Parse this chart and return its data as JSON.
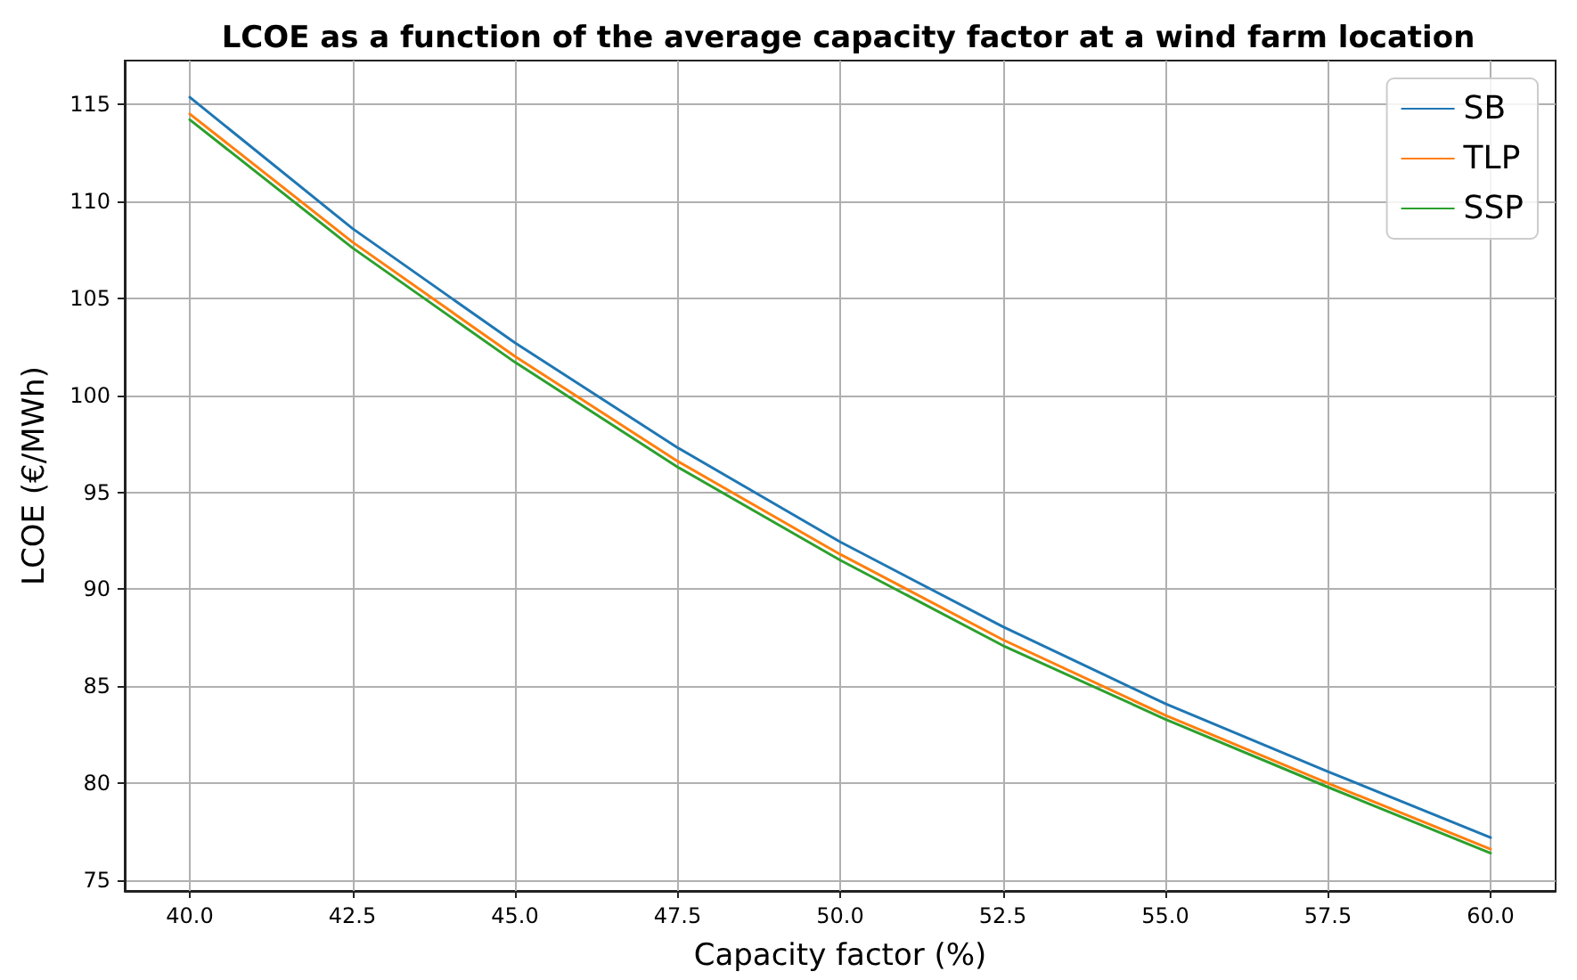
{
  "chart_data": {
    "type": "line",
    "title": "LCOE as a function of the average capacity factor at a wind farm location",
    "xlabel": "Capacity factor (%)",
    "ylabel": "LCOE (€/MWh)",
    "x": [
      40,
      42.5,
      45,
      47.5,
      50,
      52.5,
      55,
      57.5,
      60
    ],
    "series": [
      {
        "name": "SB",
        "color": "#1f77b4",
        "values": [
          115.36,
          108.6,
          102.7,
          97.3,
          92.44,
          88.07,
          84.1,
          80.6,
          77.2
        ]
      },
      {
        "name": "TLP",
        "color": "#ff7f0e",
        "values": [
          114.5,
          107.9,
          102.0,
          96.6,
          91.8,
          87.4,
          83.5,
          80.0,
          76.6
        ]
      },
      {
        "name": "SSP",
        "color": "#2ca02c",
        "values": [
          114.2,
          107.6,
          101.7,
          96.3,
          91.5,
          87.1,
          83.3,
          79.8,
          76.4
        ]
      }
    ],
    "xlim": [
      39,
      61
    ],
    "ylim": [
      74.45,
      117.25
    ],
    "xticks": [
      {
        "value": 40,
        "label": "40.0"
      },
      {
        "value": 42.5,
        "label": "42.5"
      },
      {
        "value": 45,
        "label": "45.0"
      },
      {
        "value": 47.5,
        "label": "47.5"
      },
      {
        "value": 50,
        "label": "50.0"
      },
      {
        "value": 52.5,
        "label": "52.5"
      },
      {
        "value": 55,
        "label": "55.0"
      },
      {
        "value": 57.5,
        "label": "57.5"
      },
      {
        "value": 60,
        "label": "60.0"
      }
    ],
    "yticks": [
      75,
      80,
      85,
      90,
      95,
      100,
      105,
      110,
      115
    ],
    "grid": true,
    "legend": "top right",
    "marker": "none",
    "line_style": "solid"
  }
}
